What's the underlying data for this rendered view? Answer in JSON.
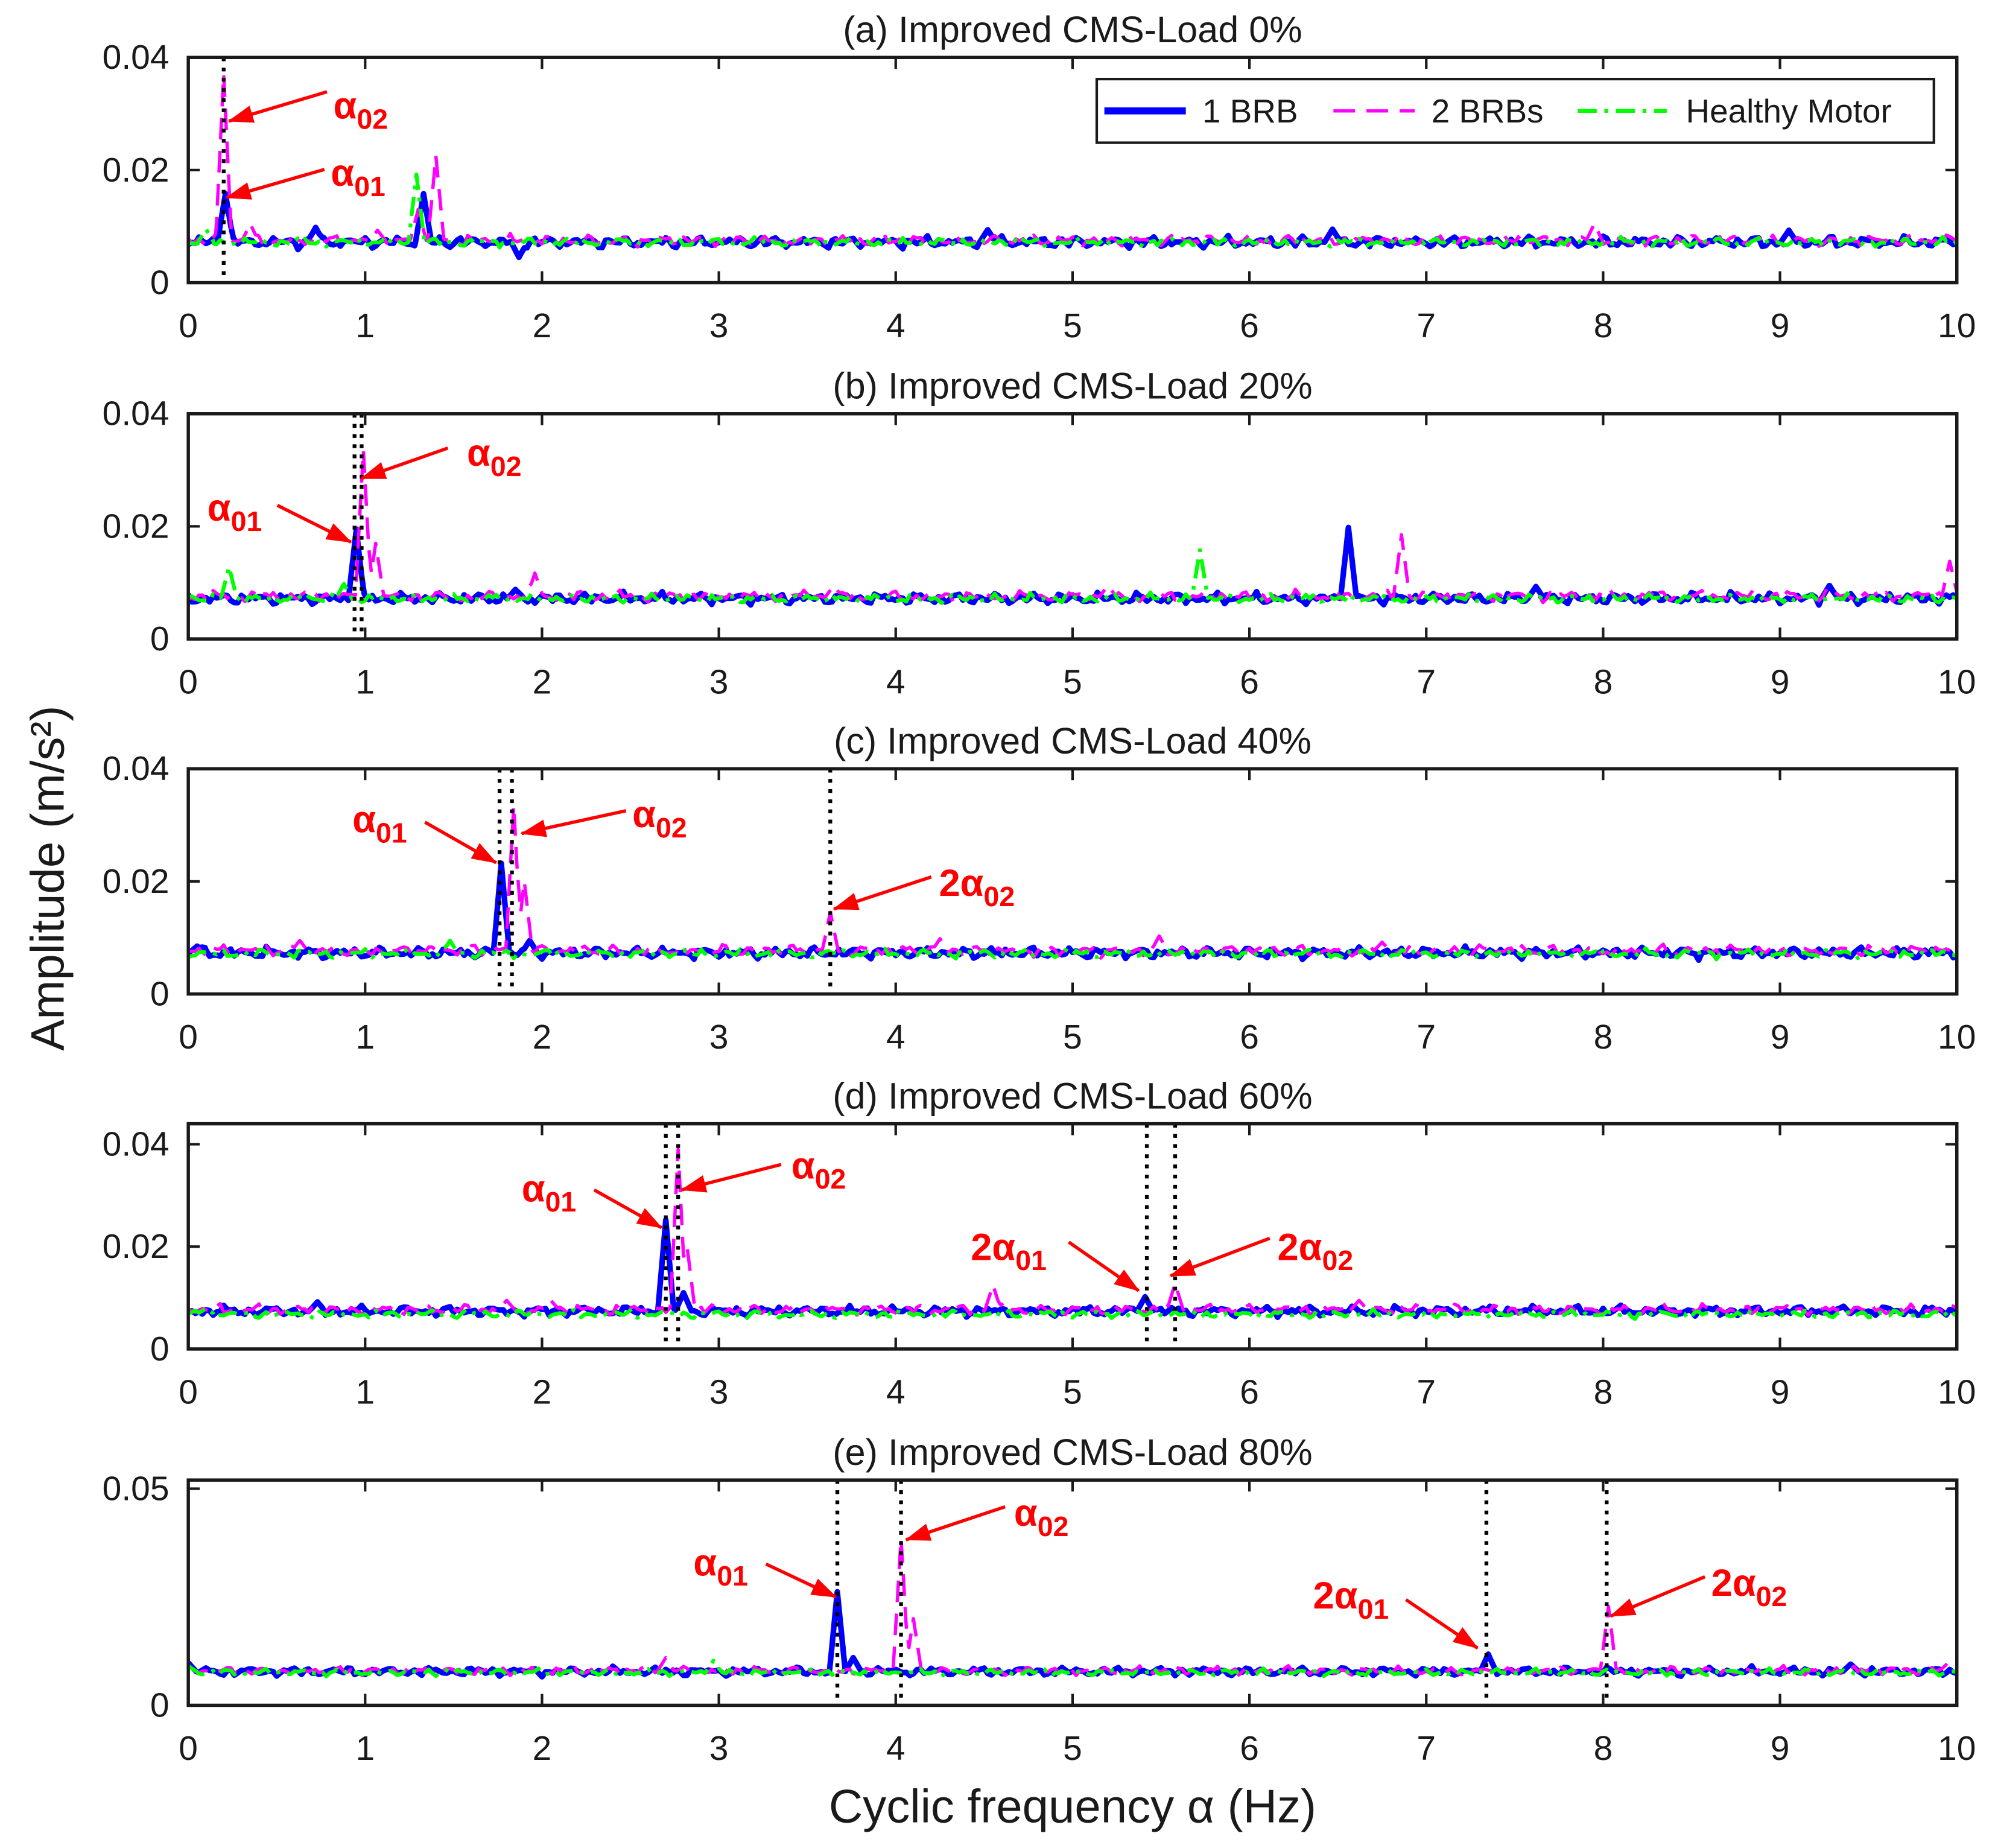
{
  "chart_data": {
    "type": "line",
    "xlabel": "Cyclic frequency α (Hz)",
    "ylabel": "Amplitude (m/s²)",
    "xlim": [
      0,
      10
    ],
    "xticks": [
      0,
      1,
      2,
      3,
      4,
      5,
      6,
      7,
      8,
      9,
      10
    ],
    "grid": false,
    "legend": {
      "location": "top-right of panel (a)"
    },
    "series_styles": [
      {
        "name": "1 BRB",
        "color": "#0000ff"
      },
      {
        "name": "2 BRBs",
        "color": "#ff00ff"
      },
      {
        "name": "Healthy Motor",
        "color": "#00ff00"
      }
    ],
    "marker_color": "#000000",
    "annotation_color": "#ff0000",
    "panels": [
      {
        "title": "(a) Improved CMS-Load 0%",
        "ylim": [
          0,
          0.04
        ],
        "yticks": [
          0,
          0.02,
          0.04
        ],
        "marker_lines_x": [
          0.2
        ],
        "series": [
          {
            "baseline": 0.0072,
            "noise": 0.0009,
            "extrema": [
              [
                0.21,
                0.0158
              ],
              [
                0.72,
                0.0098
              ],
              [
                1.33,
                0.0158
              ],
              [
                1.87,
                0.0045
              ],
              [
                4.52,
                0.0094
              ],
              [
                6.47,
                0.0095
              ],
              [
                9.05,
                0.0093
              ]
            ]
          },
          {
            "baseline": 0.0075,
            "noise": 0.0009,
            "extrema": [
              [
                0.2,
                0.037
              ],
              [
                0.35,
                0.0105
              ],
              [
                1.07,
                0.0093
              ],
              [
                1.3,
                0.013
              ],
              [
                1.4,
                0.0225
              ],
              [
                7.95,
                0.0105
              ]
            ]
          },
          {
            "baseline": 0.0072,
            "noise": 0.0007,
            "extrema": [
              [
                0.1,
                0.0095
              ],
              [
                1.29,
                0.0192
              ]
            ]
          }
        ],
        "annotations": [
          {
            "label": "α",
            "sub": "02",
            "x": 0.23,
            "y": 0.0287
          },
          {
            "label": "α",
            "sub": "01",
            "x": 0.216,
            "y": 0.0151
          }
        ]
      },
      {
        "title": "(b) Improved CMS-Load 20%",
        "ylim": [
          0,
          0.04
        ],
        "yticks": [
          0,
          0.02,
          0.04
        ],
        "marker_lines_x": [
          0.94,
          0.98
        ],
        "series": [
          {
            "baseline": 0.0072,
            "noise": 0.0009,
            "extrema": [
              [
                0.95,
                0.0195
              ],
              [
                1.85,
                0.0088
              ],
              [
                6.56,
                0.0198
              ],
              [
                7.62,
                0.0093
              ],
              [
                9.28,
                0.0095
              ]
            ]
          },
          {
            "baseline": 0.0076,
            "noise": 0.0009,
            "extrema": [
              [
                0.99,
                0.0335
              ],
              [
                1.06,
                0.017
              ],
              [
                1.96,
                0.0117
              ],
              [
                3.65,
                0.0095
              ],
              [
                5.2,
                0.0095
              ],
              [
                6.86,
                0.0185
              ],
              [
                9.96,
                0.0138
              ]
            ]
          },
          {
            "baseline": 0.0072,
            "noise": 0.0007,
            "extrema": [
              [
                0.23,
                0.0128
              ],
              [
                0.88,
                0.0098
              ],
              [
                5.72,
                0.0158
              ]
            ]
          }
        ],
        "annotations": [
          {
            "label": "α",
            "sub": "02",
            "x": 0.978,
            "y": 0.0285
          },
          {
            "label": "α",
            "sub": "01",
            "x": 0.92,
            "y": 0.0172
          }
        ]
      },
      {
        "title": "(c) Improved CMS-Load 40%",
        "ylim": [
          0,
          0.04
        ],
        "yticks": [
          0,
          0.02,
          0.04
        ],
        "marker_lines_x": [
          1.76,
          1.83,
          3.63
        ],
        "series": [
          {
            "baseline": 0.0073,
            "noise": 0.0009,
            "extrema": [
              [
                0.05,
                0.0085
              ],
              [
                1.77,
                0.0232
              ],
              [
                1.93,
                0.0095
              ]
            ]
          },
          {
            "baseline": 0.0077,
            "noise": 0.0009,
            "extrema": [
              [
                0.63,
                0.0095
              ],
              [
                1.84,
                0.0335
              ],
              [
                1.9,
                0.02
              ],
              [
                3.63,
                0.0145
              ],
              [
                4.25,
                0.0098
              ],
              [
                5.49,
                0.0103
              ],
              [
                6.75,
                0.0092
              ]
            ]
          },
          {
            "baseline": 0.0072,
            "noise": 0.0007,
            "extrema": [
              [
                1.48,
                0.0095
              ]
            ]
          }
        ],
        "annotations": [
          {
            "label": "α",
            "sub": "01",
            "x": 1.741,
            "y": 0.0233
          },
          {
            "label": "α",
            "sub": "02",
            "x": 1.885,
            "y": 0.0285
          },
          {
            "label": "2α",
            "sub": "02",
            "x": 3.65,
            "y": 0.0151
          }
        ]
      },
      {
        "title": "(d) Improved CMS-Load 60%",
        "ylim": [
          0,
          0.044
        ],
        "yticks": [
          0,
          0.02,
          0.04
        ],
        "marker_lines_x": [
          2.7,
          2.77,
          5.42,
          5.58
        ],
        "series": [
          {
            "baseline": 0.0074,
            "noise": 0.0009,
            "extrema": [
              [
                0.73,
                0.0092
              ],
              [
                2.7,
                0.0252
              ],
              [
                2.8,
                0.011
              ],
              [
                5.41,
                0.0102
              ]
            ]
          },
          {
            "baseline": 0.0077,
            "noise": 0.0009,
            "extrema": [
              [
                1.8,
                0.0095
              ],
              [
                2.05,
                0.0095
              ],
              [
                2.77,
                0.039
              ],
              [
                2.82,
                0.02
              ],
              [
                4.55,
                0.0125
              ],
              [
                5.58,
                0.0128
              ],
              [
                6.62,
                0.0095
              ]
            ]
          },
          {
            "baseline": 0.0068,
            "noise": 0.0007,
            "extrema": [
              [
                0.1,
                0.008
              ]
            ]
          }
        ],
        "annotations": [
          {
            "label": "α",
            "sub": "01",
            "x": 2.676,
            "y": 0.0237
          },
          {
            "label": "α",
            "sub": "02",
            "x": 2.79,
            "y": 0.0311
          },
          {
            "label": "2α",
            "sub": "01",
            "x": 5.374,
            "y": 0.0114
          },
          {
            "label": "2α",
            "sub": "02",
            "x": 5.554,
            "y": 0.0143
          }
        ]
      },
      {
        "title": "(e) Improved CMS-Load 80%",
        "ylim": [
          0,
          0.052
        ],
        "yticks": [
          0,
          0.05
        ],
        "marker_lines_x": [
          3.67,
          4.03,
          7.34,
          8.02
        ],
        "series": [
          {
            "baseline": 0.0078,
            "noise": 0.0009,
            "extrema": [
              [
                0.0,
                0.0098
              ],
              [
                3.67,
                0.0262
              ],
              [
                3.76,
                0.011
              ],
              [
                7.35,
                0.0118
              ],
              [
                9.4,
                0.0095
              ]
            ]
          },
          {
            "baseline": 0.008,
            "noise": 0.0009,
            "extrema": [
              [
                2.7,
                0.011
              ],
              [
                4.03,
                0.0385
              ],
              [
                4.1,
                0.02
              ],
              [
                8.03,
                0.0228
              ],
              [
                9.95,
                0.0098
              ]
            ]
          },
          {
            "baseline": 0.0076,
            "noise": 0.0007,
            "extrema": [
              [
                0.0,
                0.0092
              ],
              [
                2.97,
                0.0103
              ]
            ]
          }
        ],
        "annotations": [
          {
            "label": "α",
            "sub": "01",
            "x": 3.662,
            "y": 0.025
          },
          {
            "label": "α",
            "sub": "02",
            "x": 4.058,
            "y": 0.0382
          },
          {
            "label": "2α",
            "sub": "01",
            "x": 7.29,
            "y": 0.0132
          },
          {
            "label": "2α",
            "sub": "02",
            "x": 8.043,
            "y": 0.0206
          }
        ]
      }
    ]
  }
}
